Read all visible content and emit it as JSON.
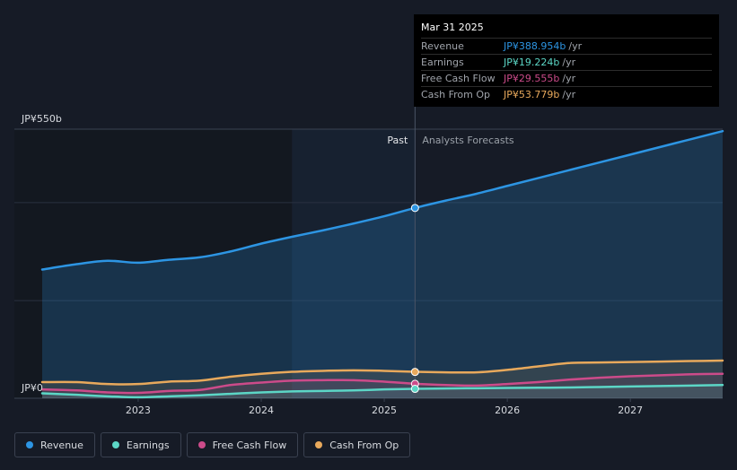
{
  "colors": {
    "background": "#161b26",
    "revenue": "#2d95e3",
    "earnings": "#5cd6c6",
    "fcf": "#cc4b8a",
    "cfo": "#e8a95c",
    "grid": "#2a3140",
    "axis_text": "#d8dbe0"
  },
  "tooltip": {
    "date": "Mar 31 2025",
    "rows": [
      {
        "name": "Revenue",
        "value": "JP¥388.954b",
        "unit": "/yr",
        "color": "#2d95e3"
      },
      {
        "name": "Earnings",
        "value": "JP¥19.224b",
        "unit": "/yr",
        "color": "#5cd6c6"
      },
      {
        "name": "Free Cash Flow",
        "value": "JP¥29.555b",
        "unit": "/yr",
        "color": "#cc4b8a"
      },
      {
        "name": "Cash From Op",
        "value": "JP¥53.779b",
        "unit": "/yr",
        "color": "#e8a95c"
      }
    ]
  },
  "legend": [
    {
      "label": "Revenue",
      "color": "#2d95e3"
    },
    {
      "label": "Earnings",
      "color": "#5cd6c6"
    },
    {
      "label": "Free Cash Flow",
      "color": "#cc4b8a"
    },
    {
      "label": "Cash From Op",
      "color": "#e8a95c"
    }
  ],
  "chart_data": {
    "type": "line",
    "y_axis_labels": {
      "top": "JP¥550b",
      "bottom": "JP¥0"
    },
    "ylim": [
      0,
      550
    ],
    "xlim": [
      2022.22,
      2027.75
    ],
    "x_ticks": [
      2023,
      2024,
      2025,
      2026,
      2027
    ],
    "x_tick_labels": [
      "2023",
      "2024",
      "2025",
      "2026",
      "2027"
    ],
    "divider_x": 2025.25,
    "past_label": "Past",
    "forecast_label": "Analysts Forecasts",
    "shade_start_x": 2024.25,
    "series": [
      {
        "name": "Revenue",
        "key": "revenue",
        "highlight": 388.954,
        "x": [
          2022.22,
          2022.5,
          2022.75,
          2023.0,
          2023.25,
          2023.5,
          2023.75,
          2024.0,
          2024.25,
          2024.5,
          2024.75,
          2025.0,
          2025.25,
          2025.5,
          2025.75,
          2026.0,
          2026.25,
          2026.5,
          2026.75,
          2027.0,
          2027.25,
          2027.5,
          2027.75
        ],
        "values": [
          263,
          274,
          281,
          277,
          283,
          288,
          300,
          316,
          330,
          343,
          357,
          372,
          389,
          404,
          418,
          434,
          450,
          466,
          482,
          498,
          514,
          530,
          546
        ]
      },
      {
        "name": "Earnings",
        "key": "earnings",
        "highlight": 19.224,
        "x": [
          2022.22,
          2022.5,
          2022.75,
          2023.0,
          2023.25,
          2023.5,
          2023.75,
          2024.0,
          2024.25,
          2024.5,
          2024.75,
          2025.0,
          2025.25,
          2025.5,
          2025.75,
          2026.0,
          2026.25,
          2026.5,
          2026.75,
          2027.0,
          2027.25,
          2027.5,
          2027.75
        ],
        "values": [
          10,
          7,
          4,
          2,
          4,
          6,
          9,
          12,
          14,
          15,
          16,
          18,
          19.2,
          20,
          20.5,
          21,
          21.5,
          22,
          23,
          24,
          25,
          26,
          27
        ]
      },
      {
        "name": "Free Cash Flow",
        "key": "fcf",
        "highlight": 29.555,
        "x": [
          2022.22,
          2022.5,
          2022.75,
          2023.0,
          2023.25,
          2023.5,
          2023.75,
          2024.0,
          2024.25,
          2024.5,
          2024.75,
          2025.0,
          2025.25,
          2025.5,
          2025.75,
          2026.0,
          2026.25,
          2026.5,
          2026.75,
          2027.0,
          2027.25,
          2027.5,
          2027.75
        ],
        "values": [
          18,
          16,
          12,
          11,
          15,
          17,
          27,
          32,
          36,
          37,
          37,
          34,
          29.6,
          27,
          26,
          29,
          33,
          38,
          42,
          45,
          47,
          49,
          50
        ]
      },
      {
        "name": "Cash From Op",
        "key": "cfo",
        "highlight": 53.779,
        "x": [
          2022.22,
          2022.5,
          2022.75,
          2023.0,
          2023.25,
          2023.5,
          2023.75,
          2024.0,
          2024.25,
          2024.5,
          2024.75,
          2025.0,
          2025.25,
          2025.5,
          2025.75,
          2026.0,
          2026.25,
          2026.5,
          2026.75,
          2027.0,
          2027.25,
          2027.5,
          2027.75
        ],
        "values": [
          33,
          33,
          29,
          29,
          34,
          36,
          44,
          50,
          54,
          56,
          57,
          56,
          54,
          53,
          53,
          58,
          65,
          72,
          73,
          74,
          75,
          76,
          77
        ]
      }
    ]
  }
}
